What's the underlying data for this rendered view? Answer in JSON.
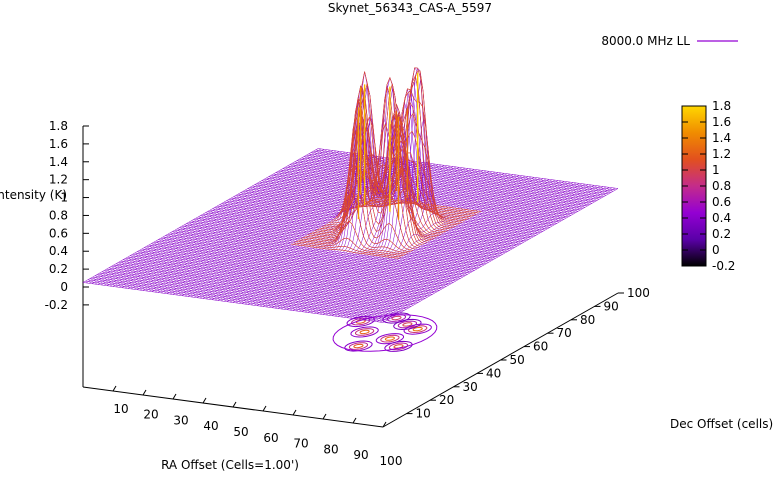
{
  "chart_data": {
    "type": "surface3d",
    "title": "Skynet_56343_CAS-A_5597",
    "legend": {
      "position": "top-right",
      "entries": [
        {
          "label": "8000.0 MHz LL",
          "color": "#9400d3"
        }
      ]
    },
    "xlabel": "RA Offset (Cells=1.00')",
    "ylabel": "Dec Offset (cells)",
    "zlabel": "Intensity (K)",
    "xlim": [
      0,
      100
    ],
    "ylim": [
      0,
      100
    ],
    "zlim": [
      -0.2,
      1.8
    ],
    "xticks": [
      "10",
      "20",
      "30",
      "40",
      "50",
      "60",
      "70",
      "80",
      "90",
      "100"
    ],
    "yticks": [
      "10",
      "20",
      "30",
      "40",
      "50",
      "60",
      "70",
      "80",
      "90",
      "100"
    ],
    "zticks": [
      "1.8",
      "1.6",
      "1.4",
      "1.2",
      "1",
      "0.8",
      "0.6",
      "0.4",
      "0.2",
      "0",
      "-0.2"
    ],
    "colorbar": {
      "range": [
        -0.2,
        1.8
      ],
      "ticks": [
        "1.8",
        "1.6",
        "1.4",
        "1.2",
        "1",
        "0.8",
        "0.6",
        "0.4",
        "0.2",
        "0",
        "-0.2"
      ],
      "colors": [
        "#000000",
        "#5a00a8",
        "#9400d3",
        "#c42c8a",
        "#e2501e",
        "#f08c00",
        "#ffd700"
      ]
    },
    "grid": false,
    "peaks": [
      {
        "x": 44,
        "y": 62,
        "intensity": 1.5
      },
      {
        "x": 50,
        "y": 56,
        "intensity": 1.65
      },
      {
        "x": 55,
        "y": 47,
        "intensity": 1.55
      },
      {
        "x": 60,
        "y": 54,
        "intensity": 1.7
      },
      {
        "x": 58,
        "y": 64,
        "intensity": 1.3
      },
      {
        "x": 63,
        "y": 62,
        "intensity": 1.75
      },
      {
        "x": 66,
        "y": 50,
        "intensity": 1.45
      },
      {
        "x": 52,
        "y": 67,
        "intensity": 1.2
      }
    ],
    "baseline_intensity": 0.05
  }
}
